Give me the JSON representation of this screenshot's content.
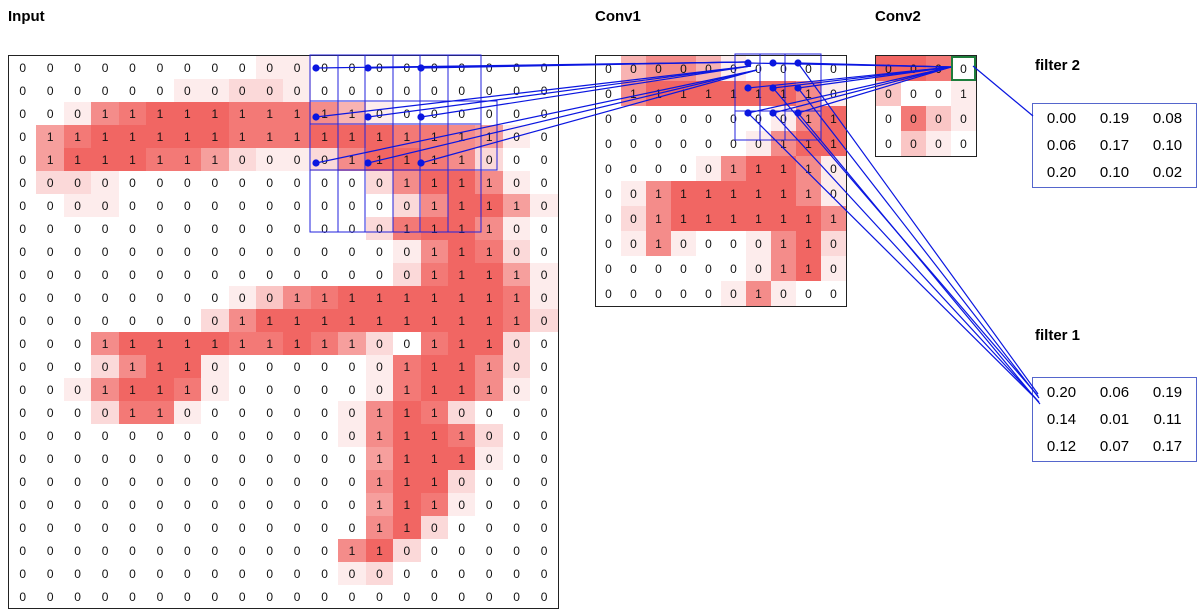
{
  "sections": {
    "input": "Input",
    "conv1": "Conv1",
    "conv2": "Conv2"
  },
  "colors": {
    "heat_base": "#ef5350",
    "connection_blue": "#0a16e0",
    "receptive_box_blue": "#2222dd",
    "highlight_green": "#1e7d3c",
    "filter_border": "#5566cc"
  },
  "input_grid": {
    "values": [
      "00000000000000000000",
      "00000000000000000000",
      "00011111111110000000",
      "01111111111111111100",
      "01111111000011111000",
      "00000000000000111100",
      "00000000000000011110",
      "00000000000000111100",
      "00000000000000011100",
      "00000000000000011110",
      "00000000001111111110",
      "00000000111111111110",
      "00011111111110011100",
      "00001110000000111100",
      "00011110000000111100",
      "00001100000001110000",
      "00000000000001111000",
      "00000000000001111000",
      "00000000000001110000",
      "00000000000001110000",
      "00000000000001100000",
      "00000000000011000000",
      "00000000000000000000",
      "00000000000000000000"
    ],
    "intensity": [
      "00000000011000000000",
      "00000011221000000000",
      "00167888777641000000",
      "05788888777888776510",
      "05888775211268876200",
      "02210000000002688610",
      "00110000000000268851",
      "00000000000002788610",
      "00000000000000168720",
      "00000000000000278851",
      "00000000136788888871",
      "00000002688888888872",
      "00068888778752078820",
      "00026881000001788620",
      "00168871000001788610",
      "00027710000016872000",
      "00000000000016887200",
      "00000000000005888100",
      "00000000000006882000",
      "00000000000005871000",
      "00000000000006820000",
      "00000000000068200000",
      "00000000000012000000",
      "00000000000000000000"
    ]
  },
  "conv1_grid": {
    "values": [
      "0000000000",
      "0111111110",
      "0000000011",
      "0000000111",
      "0000011110",
      "0011111110",
      "0011111111",
      "0010000110",
      "0000000110",
      "0000001000"
    ],
    "intensity": [
      "0466410000",
      "0688888861",
      "0000000168",
      "0000001688",
      "0000168861",
      "0168888861",
      "0268888886",
      "0161001682",
      "0000001681",
      "0000016100"
    ]
  },
  "conv2_grid": {
    "values": [
      "0000",
      "0001",
      "0000",
      "0000"
    ],
    "intensity": [
      "8870",
      "3001",
      "0731",
      "0310"
    ],
    "highlight": {
      "row": 0,
      "col": 3
    }
  },
  "filters": {
    "f2": {
      "label": "filter 2",
      "values": [
        [
          "0.00",
          "0.19",
          "0.08"
        ],
        [
          "0.06",
          "0.17",
          "0.10"
        ],
        [
          "0.20",
          "0.10",
          "0.02"
        ]
      ]
    },
    "f1": {
      "label": "filter 1",
      "values": [
        [
          "0.20",
          "0.06",
          "0.19"
        ],
        [
          "0.14",
          "0.01",
          "0.11"
        ],
        [
          "0.12",
          "0.07",
          "0.17"
        ]
      ]
    }
  }
}
